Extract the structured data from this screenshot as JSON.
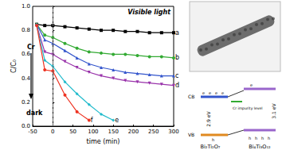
{
  "chart_data": {
    "type": "line",
    "x_label": "time (min)",
    "y_label": "C/C₀",
    "annotations": [
      "Visible light",
      "Cr",
      "dark"
    ],
    "vline": 0,
    "xlim": [
      -50,
      300
    ],
    "xticks": [
      -50,
      0,
      50,
      100,
      150,
      200,
      250,
      300
    ],
    "ylim": [
      0,
      1
    ],
    "yticks": [
      {
        "value": 0,
        "label": "0.0"
      },
      {
        "value": 0.2,
        "label": "0.2"
      },
      {
        "value": 0.4,
        "label": "0.4"
      },
      {
        "value": 0.6,
        "label": "0.6"
      },
      {
        "value": 0.8,
        "label": "0.8"
      },
      {
        "value": 1,
        "label": "1.0"
      }
    ],
    "grid": false,
    "series": [
      {
        "name": "a",
        "color": "#000000",
        "marker": "square",
        "x": [
          -40,
          -20,
          0,
          30,
          60,
          90,
          120,
          150,
          180,
          210,
          240,
          270,
          300
        ],
        "values": [
          0.85,
          0.84,
          0.84,
          0.83,
          0.82,
          0.81,
          0.8,
          0.8,
          0.79,
          0.79,
          0.78,
          0.78,
          0.78
        ]
      },
      {
        "name": "b",
        "color": "#33aa33",
        "marker": "circle",
        "x": [
          -40,
          -20,
          0,
          30,
          60,
          90,
          120,
          150,
          180,
          210,
          240,
          270,
          300
        ],
        "values": [
          0.85,
          0.76,
          0.74,
          0.69,
          0.65,
          0.62,
          0.61,
          0.6,
          0.6,
          0.59,
          0.58,
          0.58,
          0.57
        ]
      },
      {
        "name": "c",
        "color": "#3355cc",
        "marker": "triangle",
        "x": [
          -40,
          -20,
          0,
          30,
          60,
          90,
          120,
          150,
          180,
          210,
          240,
          270,
          300
        ],
        "values": [
          0.85,
          0.72,
          0.69,
          0.63,
          0.57,
          0.52,
          0.49,
          0.47,
          0.45,
          0.44,
          0.43,
          0.42,
          0.42
        ]
      },
      {
        "name": "d",
        "color": "#9933aa",
        "marker": "triangle-down",
        "x": [
          -40,
          -20,
          0,
          30,
          60,
          90,
          120,
          150,
          180,
          210,
          240,
          270,
          300
        ],
        "values": [
          0.84,
          0.62,
          0.6,
          0.54,
          0.49,
          0.45,
          0.42,
          0.4,
          0.38,
          0.37,
          0.36,
          0.35,
          0.34
        ]
      },
      {
        "name": "e",
        "color": "#22bbcc",
        "marker": "diamond",
        "x": [
          -40,
          -20,
          0,
          30,
          60,
          90,
          120,
          150
        ],
        "values": [
          0.84,
          0.55,
          0.5,
          0.37,
          0.27,
          0.18,
          0.1,
          0.05
        ]
      },
      {
        "name": "f",
        "color": "#ee3322",
        "marker": "circle",
        "x": [
          -40,
          -20,
          0,
          30,
          60,
          90
        ],
        "values": [
          0.84,
          0.47,
          0.46,
          0.26,
          0.12,
          0.05
        ]
      }
    ]
  },
  "diagram": {
    "cb": "CB",
    "vb": "VB",
    "gap_left": "2.9 eV",
    "gap_right": "3.1 eV",
    "impurity": "Cr impurity level",
    "left": "Bi₂Ti₂O₇",
    "right": "Bi₄Ti₃O₁₂",
    "electron": "e",
    "hole": "h"
  }
}
